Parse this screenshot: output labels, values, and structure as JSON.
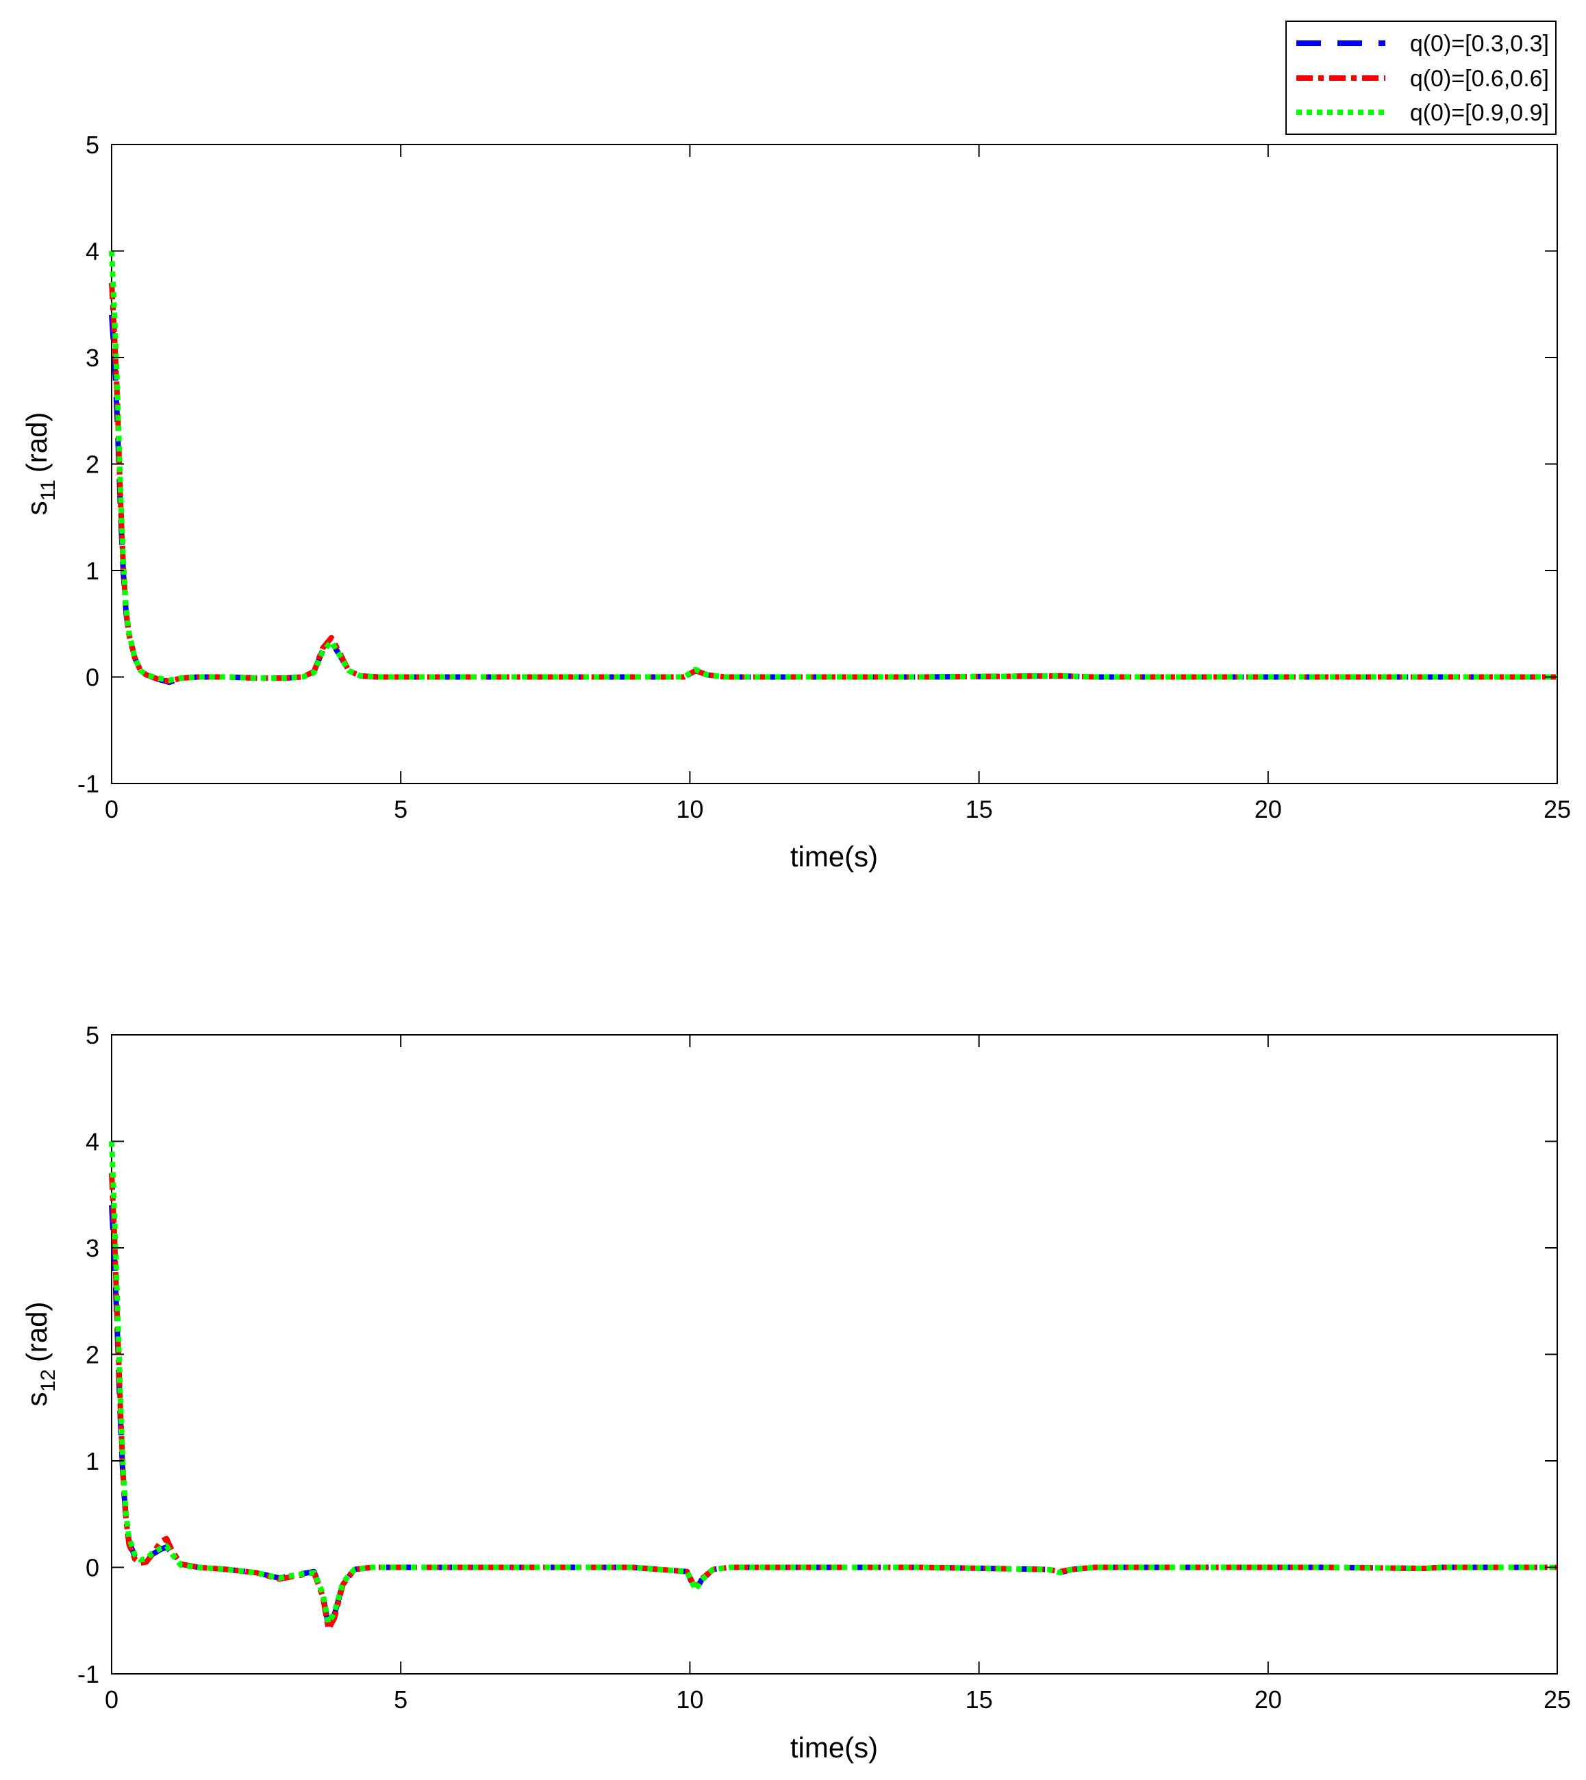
{
  "legend": {
    "entries": [
      {
        "label": "q(0)=[0.3,0.3]",
        "color": "#0000ff",
        "style": "dashed"
      },
      {
        "label": "q(0)=[0.6,0.6]",
        "color": "#ff0000",
        "style": "dash-dot"
      },
      {
        "label": "q(0)=[0.9,0.9]",
        "color": "#00ff00",
        "style": "dotted"
      }
    ]
  },
  "chart_data": [
    {
      "type": "line",
      "xlabel": "time(s)",
      "ylabel_main": "s",
      "ylabel_sub": "11",
      "ylabel_unit": "(rad)",
      "xlim": [
        0,
        25
      ],
      "ylim": [
        -1,
        5
      ],
      "xticks": [
        0,
        5,
        10,
        15,
        20,
        25
      ],
      "yticks": [
        -1,
        0,
        1,
        2,
        3,
        4,
        5
      ],
      "grid": false,
      "series": [
        {
          "name": "q(0)=[0.3,0.3]",
          "color": "#0000ff",
          "style": "dashed",
          "x": [
            0,
            0.05,
            0.1,
            0.15,
            0.2,
            0.25,
            0.3,
            0.4,
            0.5,
            0.6,
            0.8,
            1.0,
            1.2,
            1.5,
            2.0,
            2.5,
            3.0,
            3.3,
            3.5,
            3.65,
            3.8,
            3.95,
            4.1,
            4.3,
            4.6,
            5,
            7,
            9,
            9.9,
            10.1,
            10.3,
            10.6,
            12,
            14,
            16.4,
            17,
            19,
            21,
            22.7,
            23,
            25
          ],
          "y": [
            3.4,
            3.0,
            2.4,
            1.6,
            1.0,
            0.6,
            0.4,
            0.18,
            0.06,
            0.02,
            -0.02,
            -0.05,
            -0.01,
            0.0,
            0.0,
            -0.01,
            -0.01,
            0.0,
            0.05,
            0.25,
            0.33,
            0.2,
            0.06,
            0.01,
            0.0,
            0.0,
            0.0,
            0.0,
            0.0,
            0.06,
            0.02,
            0.0,
            0.0,
            0.0,
            0.01,
            0.0,
            0.0,
            0.0,
            0.0,
            0.0,
            0.0
          ]
        },
        {
          "name": "q(0)=[0.6,0.6]",
          "color": "#ff0000",
          "style": "dash-dot",
          "x": [
            0,
            0.05,
            0.1,
            0.15,
            0.2,
            0.25,
            0.3,
            0.4,
            0.5,
            0.6,
            0.8,
            1.0,
            1.2,
            1.5,
            2.0,
            2.5,
            3.0,
            3.3,
            3.5,
            3.65,
            3.8,
            3.95,
            4.1,
            4.3,
            4.6,
            5,
            7,
            9,
            9.9,
            10.1,
            10.3,
            10.6,
            12,
            14,
            16.4,
            17,
            19,
            21,
            22.7,
            23,
            25
          ],
          "y": [
            3.7,
            3.2,
            2.6,
            1.7,
            1.05,
            0.62,
            0.4,
            0.18,
            0.06,
            0.02,
            -0.02,
            -0.04,
            -0.01,
            0.0,
            0.0,
            -0.01,
            -0.01,
            0.0,
            0.05,
            0.27,
            0.37,
            0.22,
            0.06,
            0.01,
            0.0,
            0.0,
            0.0,
            0.0,
            0.0,
            0.06,
            0.02,
            0.0,
            0.0,
            0.0,
            0.01,
            0.0,
            0.0,
            0.0,
            0.0,
            0.0,
            0.0
          ]
        },
        {
          "name": "q(0)=[0.9,0.9]",
          "color": "#00ff00",
          "style": "dotted",
          "x": [
            0,
            0.05,
            0.1,
            0.15,
            0.2,
            0.25,
            0.3,
            0.4,
            0.5,
            0.6,
            0.8,
            1.0,
            1.2,
            1.5,
            2.0,
            2.5,
            3.0,
            3.3,
            3.5,
            3.65,
            3.8,
            3.95,
            4.1,
            4.3,
            4.6,
            5,
            7,
            9,
            9.9,
            10.1,
            10.3,
            10.6,
            12,
            14,
            16.4,
            17,
            19,
            21,
            22.7,
            23,
            25
          ],
          "y": [
            4.0,
            3.4,
            2.7,
            1.8,
            1.1,
            0.65,
            0.42,
            0.18,
            0.06,
            0.02,
            -0.01,
            -0.03,
            -0.01,
            0.0,
            0.0,
            -0.01,
            -0.01,
            0.0,
            0.04,
            0.24,
            0.33,
            0.2,
            0.06,
            0.01,
            0.0,
            0.0,
            0.0,
            0.0,
            0.0,
            0.07,
            0.02,
            0.0,
            0.0,
            0.0,
            0.01,
            0.0,
            0.0,
            0.0,
            0.0,
            0.0,
            0.0
          ]
        }
      ]
    },
    {
      "type": "line",
      "xlabel": "time(s)",
      "ylabel_main": "s",
      "ylabel_sub": "12",
      "ylabel_unit": "(rad)",
      "xlim": [
        0,
        25
      ],
      "ylim": [
        -1,
        5
      ],
      "xticks": [
        0,
        5,
        10,
        15,
        20,
        25
      ],
      "yticks": [
        -1,
        0,
        1,
        2,
        3,
        4,
        5
      ],
      "grid": false,
      "series": [
        {
          "name": "q(0)=[0.3,0.3]",
          "color": "#0000ff",
          "style": "dashed",
          "x": [
            0,
            0.05,
            0.1,
            0.15,
            0.2,
            0.25,
            0.3,
            0.4,
            0.5,
            0.6,
            0.7,
            0.85,
            0.95,
            1.05,
            1.2,
            1.5,
            2.0,
            2.5,
            2.9,
            3.2,
            3.5,
            3.65,
            3.75,
            3.85,
            4.0,
            4.2,
            4.5,
            5,
            7,
            9,
            9.95,
            10.1,
            10.2,
            10.4,
            10.7,
            12,
            14,
            16.2,
            16.4,
            16.6,
            17,
            19,
            21,
            22.7,
            23,
            25
          ],
          "y": [
            3.4,
            2.9,
            2.2,
            1.4,
            0.8,
            0.45,
            0.25,
            0.1,
            0.06,
            0.08,
            0.12,
            0.17,
            0.19,
            0.13,
            0.03,
            0.0,
            -0.02,
            -0.05,
            -0.1,
            -0.07,
            -0.04,
            -0.25,
            -0.55,
            -0.45,
            -0.15,
            -0.02,
            0.0,
            0.0,
            0.0,
            0.0,
            -0.04,
            -0.22,
            -0.12,
            -0.02,
            0.0,
            0.0,
            0.0,
            -0.02,
            -0.05,
            -0.02,
            0.0,
            0.0,
            0.0,
            -0.01,
            0.0,
            0.0
          ]
        },
        {
          "name": "q(0)=[0.6,0.6]",
          "color": "#ff0000",
          "style": "dash-dot",
          "x": [
            0,
            0.05,
            0.1,
            0.15,
            0.2,
            0.25,
            0.3,
            0.4,
            0.5,
            0.6,
            0.7,
            0.85,
            0.95,
            1.05,
            1.2,
            1.5,
            2.0,
            2.5,
            2.9,
            3.2,
            3.5,
            3.65,
            3.75,
            3.85,
            4.0,
            4.2,
            4.5,
            5,
            7,
            9,
            9.95,
            10.1,
            10.2,
            10.4,
            10.7,
            12,
            14,
            16.2,
            16.4,
            16.6,
            17,
            19,
            21,
            22.7,
            23,
            25
          ],
          "y": [
            3.7,
            3.1,
            2.3,
            1.5,
            0.85,
            0.45,
            0.22,
            0.08,
            0.04,
            0.05,
            0.12,
            0.24,
            0.27,
            0.15,
            0.03,
            0.0,
            -0.02,
            -0.05,
            -0.11,
            -0.08,
            -0.05,
            -0.27,
            -0.58,
            -0.48,
            -0.16,
            -0.02,
            0.0,
            0.0,
            0.0,
            0.0,
            -0.04,
            -0.2,
            -0.11,
            -0.02,
            0.0,
            0.0,
            0.0,
            -0.02,
            -0.04,
            -0.02,
            0.0,
            0.0,
            0.0,
            -0.01,
            0.0,
            0.0
          ]
        },
        {
          "name": "q(0)=[0.9,0.9]",
          "color": "#00ff00",
          "style": "dotted",
          "x": [
            0,
            0.05,
            0.1,
            0.15,
            0.2,
            0.25,
            0.3,
            0.4,
            0.5,
            0.6,
            0.7,
            0.85,
            0.95,
            1.05,
            1.2,
            1.5,
            2.0,
            2.5,
            2.9,
            3.2,
            3.5,
            3.65,
            3.75,
            3.85,
            4.0,
            4.2,
            4.5,
            5,
            7,
            9,
            9.95,
            10.1,
            10.2,
            10.4,
            10.7,
            12,
            14,
            16.2,
            16.4,
            16.6,
            17,
            19,
            21,
            22.7,
            23,
            25
          ],
          "y": [
            4.0,
            3.3,
            2.5,
            1.6,
            0.9,
            0.5,
            0.28,
            0.12,
            0.07,
            0.08,
            0.13,
            0.18,
            0.2,
            0.12,
            0.02,
            0.0,
            -0.02,
            -0.05,
            -0.1,
            -0.07,
            -0.05,
            -0.24,
            -0.52,
            -0.43,
            -0.14,
            -0.02,
            0.0,
            0.0,
            0.0,
            0.0,
            -0.04,
            -0.21,
            -0.12,
            -0.02,
            0.0,
            0.0,
            0.0,
            -0.02,
            -0.05,
            -0.02,
            0.0,
            0.0,
            0.0,
            -0.01,
            0.0,
            0.0
          ]
        }
      ]
    }
  ]
}
